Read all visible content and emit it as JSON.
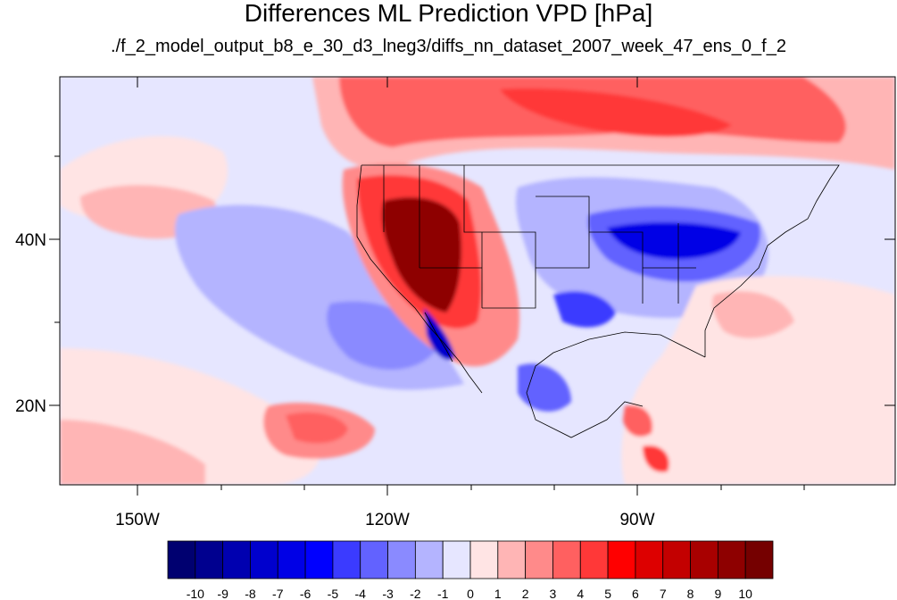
{
  "title": "Differences ML Prediction VPD [hPa]",
  "subtitle": "./f_2_model_output_b8_e_30_d3_lneg3/diffs_nn_dataset_2007_week_47_ens_0_f_2",
  "axes": {
    "lon_ticks": [
      "150W",
      "120W",
      "90W"
    ],
    "lat_ticks": [
      "40N",
      "20N"
    ]
  },
  "colorbar": {
    "labels": [
      "-10",
      "-9",
      "-8",
      "-7",
      "-6",
      "-5",
      "-4",
      "-3",
      "-2",
      "-1",
      "0",
      "1",
      "2",
      "3",
      "4",
      "5",
      "6",
      "7",
      "8",
      "9",
      "10"
    ],
    "colors": [
      "#000070",
      "#00008f",
      "#0000b0",
      "#0000cd",
      "#0000e6",
      "#0000ff",
      "#3b3bff",
      "#6262ff",
      "#8a8aff",
      "#b4b4ff",
      "#e6e6ff",
      "#ffe4e4",
      "#ffb5b5",
      "#ff8a8a",
      "#ff6060",
      "#ff3838",
      "#ff0000",
      "#dd0000",
      "#c30000",
      "#a80000",
      "#8e0000",
      "#750000"
    ]
  }
}
